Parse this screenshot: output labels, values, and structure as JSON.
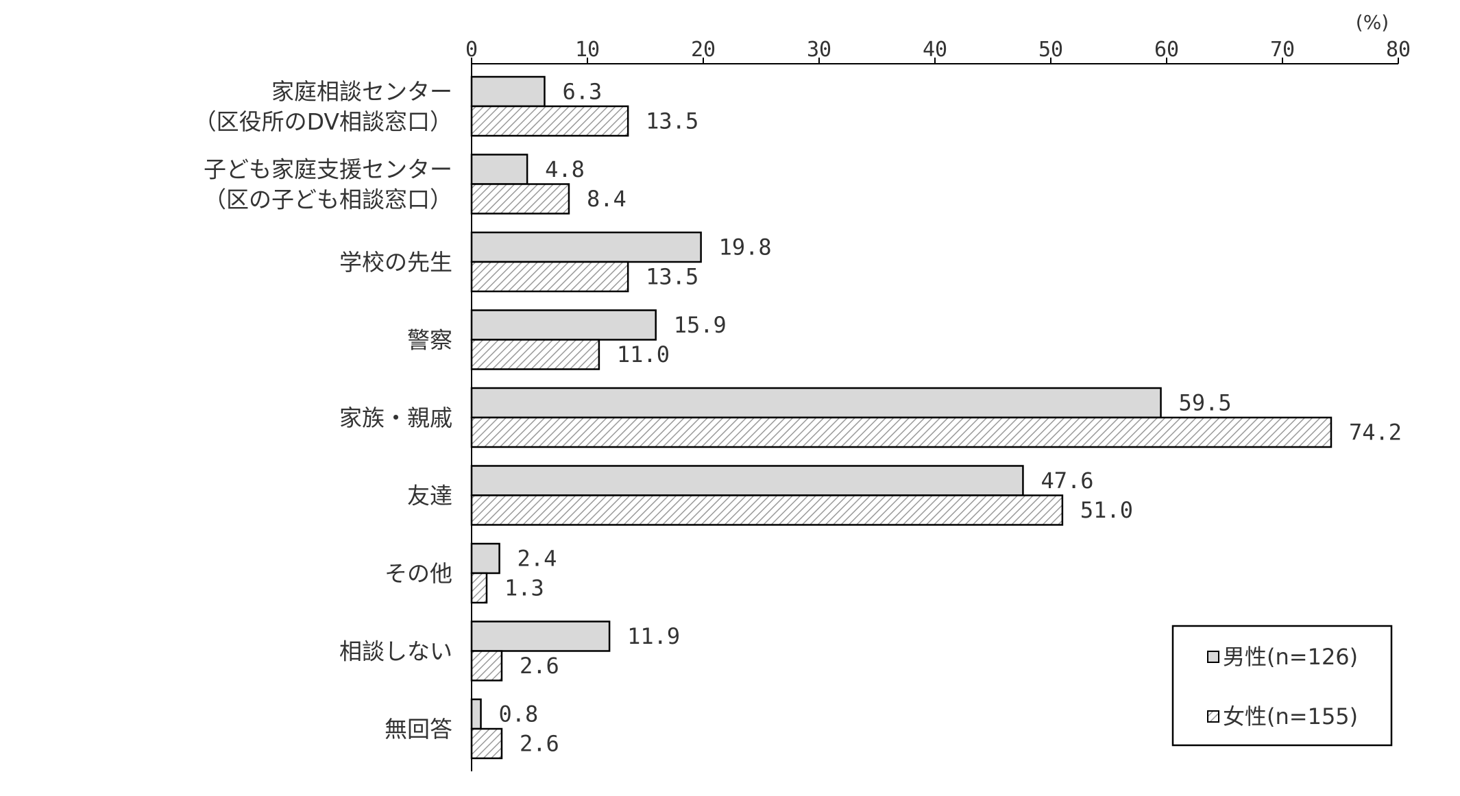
{
  "chart_data": {
    "type": "bar",
    "orientation": "horizontal",
    "unit_label": "(%)",
    "xlim": [
      0,
      80
    ],
    "xticks": [
      0,
      10,
      20,
      30,
      40,
      50,
      60,
      70,
      80
    ],
    "grid": false,
    "legend_position": "bottom-right",
    "categories": [
      [
        "家庭相談センター",
        "（区役所のDV相談窓口）"
      ],
      [
        "子ども家庭支援センター",
        "（区の子ども相談窓口）"
      ],
      [
        "学校の先生"
      ],
      [
        "警察"
      ],
      [
        "家族・親戚"
      ],
      [
        "友達"
      ],
      [
        "その他"
      ],
      [
        "相談しない"
      ],
      [
        "無回答"
      ]
    ],
    "series": [
      {
        "name": "男性(n=126)",
        "values": [
          6.3,
          4.8,
          19.8,
          15.9,
          59.5,
          47.6,
          2.4,
          11.9,
          0.8
        ],
        "labels": [
          "6.3",
          "4.8",
          "19.8",
          "15.9",
          "59.5",
          "47.6",
          "2.4",
          "11.9",
          "0.8"
        ],
        "color": "#d9d9d9",
        "pattern": "solid"
      },
      {
        "name": "女性(n=155)",
        "values": [
          13.5,
          8.4,
          13.5,
          11.0,
          74.2,
          51.0,
          1.3,
          2.6,
          2.6
        ],
        "labels": [
          "13.5",
          "8.4",
          "13.5",
          "11.0",
          "74.2",
          "51.0",
          "1.3",
          "2.6",
          "2.6"
        ],
        "color": "#f2f2f2",
        "pattern": "diagonal-hatch"
      }
    ]
  }
}
